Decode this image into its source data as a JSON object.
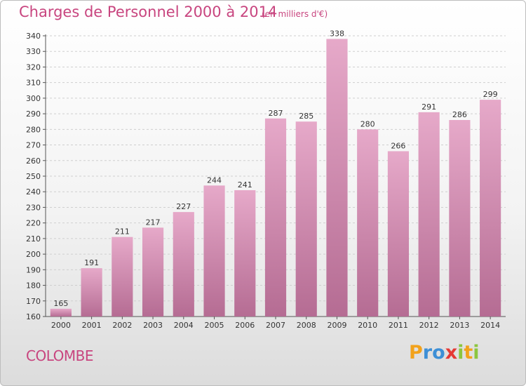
{
  "chart_data": {
    "type": "bar",
    "title": "Charges de Personnel 2000 à 2014",
    "subtitle": "(en milliers d'€)",
    "categories": [
      "2000",
      "2001",
      "2002",
      "2003",
      "2004",
      "2005",
      "2006",
      "2007",
      "2008",
      "2009",
      "2010",
      "2011",
      "2012",
      "2013",
      "2014"
    ],
    "values": [
      165,
      191,
      211,
      217,
      227,
      244,
      241,
      287,
      285,
      338,
      280,
      266,
      291,
      286,
      299
    ],
    "ylim": [
      160,
      340
    ],
    "yticks": [
      160,
      170,
      180,
      190,
      200,
      210,
      220,
      230,
      240,
      250,
      260,
      270,
      280,
      290,
      300,
      310,
      320,
      330,
      340
    ],
    "grid": true,
    "bar_color": "#d98cb4"
  },
  "commune": "COLOMBE",
  "logo": {
    "text": "Proxiti",
    "letters": [
      {
        "ch": "P",
        "color": "#f2a21c"
      },
      {
        "ch": "r",
        "color": "#3d8fd6"
      },
      {
        "ch": "o",
        "color": "#3d8fd6"
      },
      {
        "ch": "x",
        "color": "#e53935"
      },
      {
        "ch": "i",
        "color": "#8cc63f"
      },
      {
        "ch": "t",
        "color": "#f2a21c"
      },
      {
        "ch": "i",
        "color": "#8cc63f"
      }
    ]
  }
}
